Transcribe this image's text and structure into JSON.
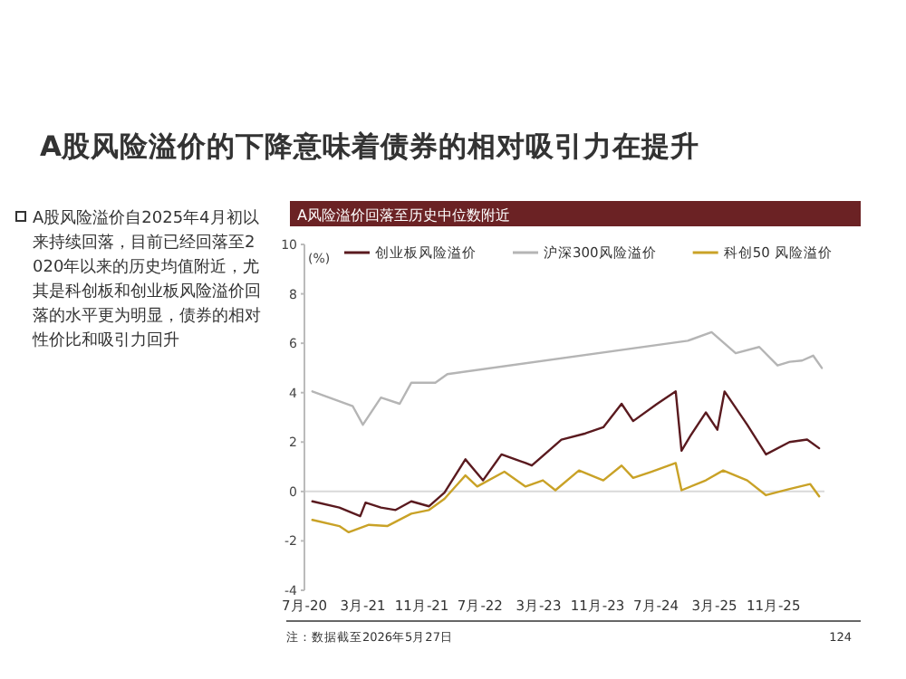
{
  "chart_data": {
    "type": "line",
    "title": "A股风险溢价的下降意味着债券的相对吸引力在提升",
    "subtitle": "A风险溢价回落至历史中位数附近",
    "ylabel": "(%)",
    "annotations": [
      "A股风险溢价自2025年4月初以来持续回落，目前已经回落至2020年以来的历史均值附近，尤其是科创板和创业板风险溢价回落的水平更为明显，债券的相对性价比和吸引力回升",
      "注：数据截至2026年5月27日",
      "124"
    ],
    "xlim": [
      "2020-07-01",
      "2026-06-01"
    ],
    "xticks": [
      {
        "value": "2020-07-01",
        "label": "7月-20"
      },
      {
        "value": "2021-03-01",
        "label": "3月-21"
      },
      {
        "value": "2021-11-01",
        "label": "11月-21"
      },
      {
        "value": "2022-07-01",
        "label": "7月-22"
      },
      {
        "value": "2023-03-01",
        "label": "3月-23"
      },
      {
        "value": "2023-11-01",
        "label": "11月-23"
      },
      {
        "value": "2024-07-01",
        "label": "7月-24"
      },
      {
        "value": "2025-03-01",
        "label": "3月-25"
      },
      {
        "value": "2025-11-01",
        "label": "11月-25"
      }
    ],
    "ylim": [
      -4,
      10
    ],
    "yticks": [
      -4,
      -2,
      0,
      2,
      4,
      6,
      8,
      10
    ],
    "legend": "top",
    "grid": false,
    "ref_lines": [
      {
        "axis": "y",
        "value": 0,
        "color": "#d9d9d9"
      }
    ],
    "series": [
      {
        "name": "创业板风险溢价",
        "color": "#5a1a1f",
        "x": [
          "2020-08-03",
          "2020-11-23",
          "2021-02-18",
          "2021-03-12",
          "2021-05-15",
          "2021-07-15",
          "2021-09-18",
          "2021-12-01",
          "2022-02-03",
          "2022-05-01",
          "2022-07-13",
          "2022-09-28",
          "2023-01-06",
          "2023-02-01",
          "2023-06-04",
          "2023-09-12",
          "2023-11-25",
          "2024-02-09",
          "2024-03-28",
          "2024-07-06",
          "2024-09-21",
          "2024-10-15",
          "2024-11-21",
          "2025-01-24",
          "2025-03-13",
          "2025-04-12",
          "2025-07-15",
          "2025-10-01",
          "2026-01-07",
          "2026-03-21",
          "2026-05-10"
        ],
        "values": [
          -0.4,
          -0.65,
          -1.0,
          -0.45,
          -0.65,
          -0.75,
          -0.4,
          -0.6,
          -0.05,
          1.3,
          0.45,
          1.5,
          1.15,
          1.05,
          2.1,
          2.35,
          2.6,
          3.55,
          2.85,
          3.55,
          4.05,
          1.65,
          2.25,
          3.2,
          2.5,
          4.05,
          2.7,
          1.5,
          2.0,
          2.1,
          1.75
        ]
      },
      {
        "name": "沪深300风险溢价",
        "color": "#b5b5b5",
        "x": [
          "2020-08-03",
          "2021-01-18",
          "2021-03-01",
          "2021-05-15",
          "2021-08-01",
          "2021-09-18",
          "2021-12-27",
          "2022-02-15",
          "2024-11-10",
          "2025-02-17",
          "2025-05-28",
          "2025-09-03",
          "2025-11-18",
          "2026-01-07",
          "2026-02-28",
          "2026-04-15",
          "2026-05-21"
        ],
        "values": [
          4.05,
          3.45,
          2.7,
          3.8,
          3.55,
          4.4,
          4.4,
          4.75,
          6.1,
          6.45,
          5.6,
          5.85,
          5.1,
          5.25,
          5.3,
          5.5,
          5.0
        ]
      },
      {
        "name": "科创50 风险溢价",
        "color": "#c9a227",
        "x": [
          "2020-08-03",
          "2020-11-23",
          "2021-01-01",
          "2021-03-26",
          "2021-06-10",
          "2021-09-18",
          "2021-12-01",
          "2022-02-03",
          "2022-05-01",
          "2022-06-19",
          "2022-10-10",
          "2023-01-06",
          "2023-03-19",
          "2023-05-10",
          "2023-08-16",
          "2023-11-25",
          "2024-02-09",
          "2024-03-28",
          "2024-06-12",
          "2024-09-21",
          "2024-10-15",
          "2025-01-24",
          "2025-04-06",
          "2025-07-15",
          "2025-10-01",
          "2026-01-07",
          "2026-04-03",
          "2026-05-10"
        ],
        "values": [
          -1.15,
          -1.4,
          -1.65,
          -1.35,
          -1.4,
          -0.9,
          -0.75,
          -0.3,
          0.65,
          0.2,
          0.8,
          0.2,
          0.45,
          0.05,
          0.85,
          0.45,
          1.05,
          0.55,
          0.8,
          1.15,
          0.05,
          0.45,
          0.85,
          0.45,
          -0.15,
          0.1,
          0.3,
          -0.2
        ]
      }
    ]
  }
}
